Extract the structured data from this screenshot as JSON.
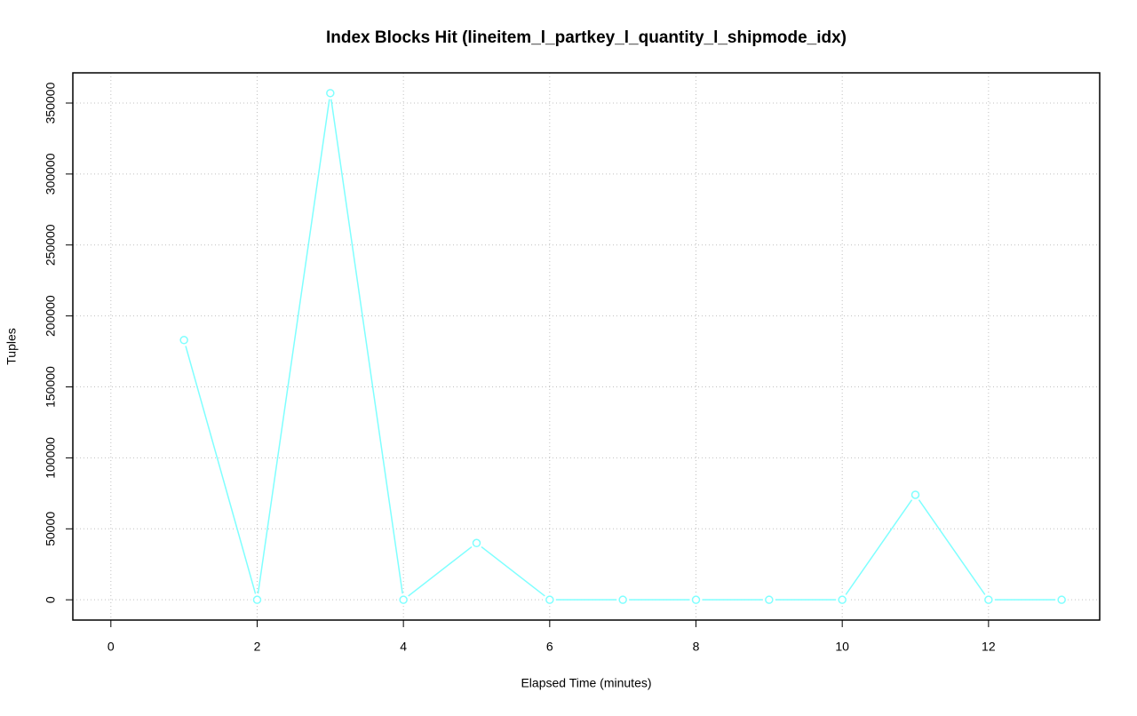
{
  "chart_data": {
    "type": "line",
    "title": "Index Blocks Hit (lineitem_l_partkey_l_quantity_l_shipmode_idx)",
    "x_label": "Elapsed Time (minutes)",
    "y_label": "Tuples",
    "x": [
      1,
      2,
      3,
      4,
      5,
      6,
      7,
      8,
      9,
      10,
      11,
      12,
      13
    ],
    "series": [
      {
        "color": "#7fffff",
        "values": [
          183000,
          0,
          357000,
          0,
          40000,
          0,
          0,
          0,
          0,
          0,
          74000,
          0,
          0
        ]
      }
    ],
    "xlim": [
      -0.52,
      13.52
    ],
    "xticks": [
      0,
      2,
      4,
      6,
      8,
      10,
      12
    ],
    "ylim": [
      -14280,
      371280
    ],
    "yticks": [
      0,
      50000,
      100000,
      150000,
      200000,
      250000,
      300000,
      350000
    ],
    "grid": true
  }
}
